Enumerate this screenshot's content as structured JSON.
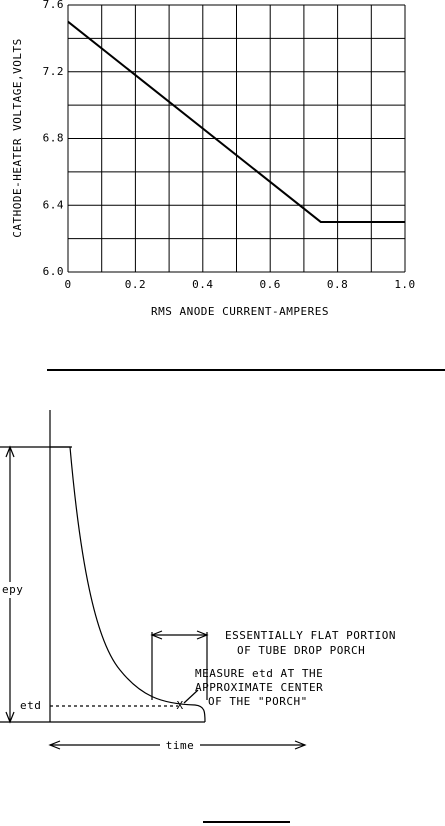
{
  "chart_data": {
    "type": "line",
    "xlabel": "RMS ANODE CURRENT-AMPERES",
    "ylabel": "CATHODE-HEATER VOLTAGE,VOLTS",
    "x": [
      0,
      0.75,
      1
    ],
    "values": [
      7.5,
      6.3,
      6.3
    ],
    "color": "#000000",
    "xlim": [
      0,
      1
    ],
    "ylim": [
      6,
      7.6
    ],
    "xticks": [
      0,
      0.2,
      0.4,
      0.6,
      0.8,
      {
        "value": 1,
        "label": "1.0"
      }
    ],
    "yticks": [
      {
        "value": 6,
        "label": "6.0"
      },
      6.4,
      6.8,
      7.2,
      7.6
    ],
    "xgrid": [
      0,
      0.1,
      0.2,
      0.3,
      0.4,
      0.5,
      0.6,
      0.7,
      0.8,
      0.9,
      1
    ],
    "ygrid": [
      6,
      6.2,
      6.4,
      6.6,
      6.8,
      7,
      7.2,
      7.4,
      7.6
    ]
  },
  "diagram": {
    "y_top_label": "epy",
    "y_level_label": "etd",
    "x_label": "time",
    "marker": "X",
    "flat_note": [
      "ESSENTIALLY FLAT PORTION",
      "OF TUBE DROP PORCH"
    ],
    "measure_note": [
      "MEASURE etd AT THE",
      "APPROXIMATE CENTER",
      "OF THE \"PORCH\""
    ]
  }
}
